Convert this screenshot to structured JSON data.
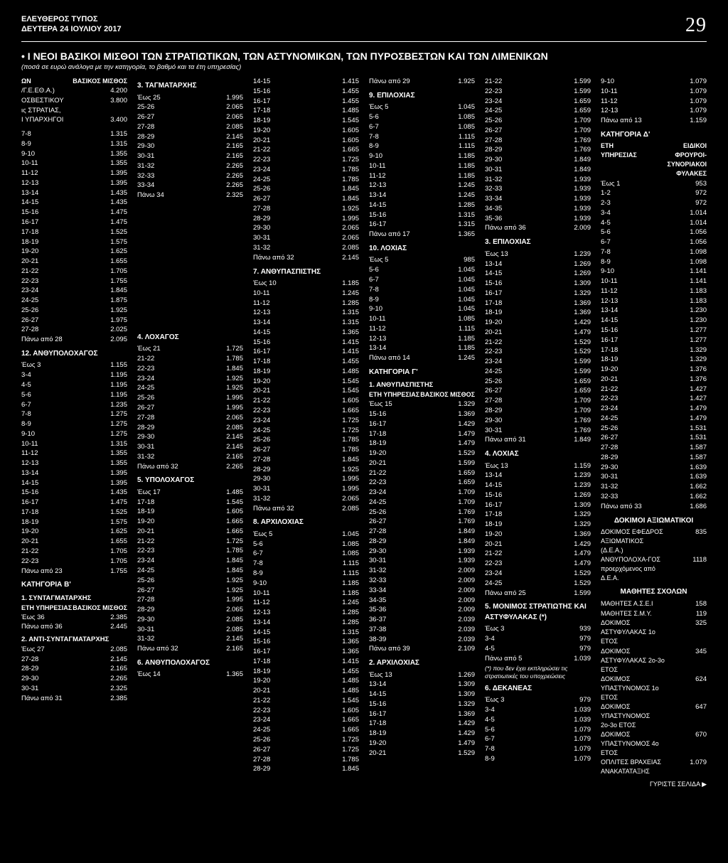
{
  "masthead": {
    "paper": "ΕΛΕΥΘΕΡΟΣ ΤΥΠΟΣ",
    "date": "ΔΕΥΤΕΡΑ 24 ΙΟΥΛΙΟΥ 2017",
    "page": "29"
  },
  "title": "• Ι ΝΕΟΙ ΒΑΣΙΚΟΙ ΜΙΣΘΟΙ ΤΩΝ ΣΤΡΑΤΙΩΤΙΚΩΝ, ΤΩΝ ΑΣΤΥΝΟΜΙΚΩΝ, ΤΩΝ ΠΥΡΟΣΒΕΣΤΩΝ ΚΑΙ ΤΩΝ ΛΙΜΕΝΙΚΩΝ",
  "subtitle": "(ποσά σε ευρώ ανάλογα με την κατηγορία, το βαθμό και τα έτη υπηρεσίας)",
  "col1": {
    "th": [
      "ΩΝ",
      "ΒΑΣΙΚΟΣ ΜΙΣΘΟΣ"
    ],
    "top": [
      [
        "/Γ.Ε.ΕΘ.Α.)",
        "4.200"
      ],
      [
        "ΟΣΒΕΣΤΙΚΟΥ",
        "3.800"
      ],
      [
        "ις ΣΤΡΑΤΙΑΣ,",
        ""
      ],
      [
        "Ι ΥΠΑΡΧΗΓΟΙ",
        "3.400"
      ]
    ],
    "rows1": [
      [
        "7-8",
        "1.315"
      ],
      [
        "8-9",
        "1.315"
      ],
      [
        "9-10",
        "1.355"
      ],
      [
        "10-11",
        "1.355"
      ],
      [
        "11-12",
        "1.395"
      ],
      [
        "12-13",
        "1.395"
      ],
      [
        "13-14",
        "1.435"
      ],
      [
        "14-15",
        "1.435"
      ],
      [
        "15-16",
        "1.475"
      ],
      [
        "16-17",
        "1.475"
      ],
      [
        "17-18",
        "1.525"
      ],
      [
        "18-19",
        "1.575"
      ],
      [
        "19-20",
        "1.625"
      ],
      [
        "20-21",
        "1.655"
      ],
      [
        "21-22",
        "1.705"
      ],
      [
        "22-23",
        "1.755"
      ],
      [
        "23-24",
        "1.845"
      ],
      [
        "24-25",
        "1.875"
      ],
      [
        "25-26",
        "1.925"
      ],
      [
        "26-27",
        "1.975"
      ],
      [
        "27-28",
        "2.025"
      ],
      [
        "Πάνω από 28",
        "2.095"
      ]
    ],
    "h12": "12. ΑΝΘΥΠΟΛΟΧΑΓΟΣ",
    "rows12": [
      [
        "Έως 3",
        "1.155"
      ],
      [
        "3-4",
        "1.195"
      ],
      [
        "4-5",
        "1.195"
      ],
      [
        "5-6",
        "1.195"
      ],
      [
        "6-7",
        "1.235"
      ],
      [
        "7-8",
        "1.275"
      ],
      [
        "8-9",
        "1.275"
      ],
      [
        "9-10",
        "1.275"
      ],
      [
        "10-11",
        "1.315"
      ],
      [
        "11-12",
        "1.355"
      ],
      [
        "12-13",
        "1.355"
      ],
      [
        "13-14",
        "1.395"
      ],
      [
        "14-15",
        "1.395"
      ],
      [
        "15-16",
        "1.435"
      ],
      [
        "16-17",
        "1.475"
      ],
      [
        "17-18",
        "1.525"
      ],
      [
        "18-19",
        "1.575"
      ],
      [
        "19-20",
        "1.625"
      ],
      [
        "20-21",
        "1.655"
      ],
      [
        "21-22",
        "1.705"
      ],
      [
        "22-23",
        "1.705"
      ],
      [
        "Πάνω από 23",
        "1.755"
      ]
    ],
    "katB": "ΚΑΤΗΓΟΡΙΑ Β'",
    "h1b": "1. ΣΥΝΤΑΓΜΑΤΑΡΧΗΣ",
    "thB": [
      "ΕΤΗ ΥΠΗΡΕΣΙΑΣ",
      "ΒΑΣΙΚΟΣ ΜΙΣΘΟΣ"
    ],
    "rowsB1": [
      [
        "Έως 36",
        "2.385"
      ],
      [
        "Πάνω από 36",
        "2.445"
      ]
    ],
    "h2b": "2. ΑΝΤΙ-ΣΥΝΤΑΓΜΑΤΑΡΧΗΣ",
    "rowsB2": [
      [
        "Έως 27",
        "2.085"
      ],
      [
        "27-28",
        "2.145"
      ],
      [
        "28-29",
        "2.165"
      ],
      [
        "29-30",
        "2.265"
      ],
      [
        "30-31",
        "2.325"
      ],
      [
        "Πάνω από 31",
        "2.385"
      ]
    ]
  },
  "col2": {
    "h3": "3. ΤΑΓΜΑΤΑΡΧΗΣ",
    "rows3": [
      [
        "Έως 25",
        "1.995"
      ],
      [
        "25-26",
        "2.065"
      ],
      [
        "26-27",
        "2.065"
      ],
      [
        "27-28",
        "2.085"
      ],
      [
        "28-29",
        "2.145"
      ],
      [
        "29-30",
        "2.165"
      ],
      [
        "30-31",
        "2.165"
      ],
      [
        "31-32",
        "2.265"
      ],
      [
        "32-33",
        "2.265"
      ],
      [
        "33-34",
        "2.265"
      ],
      [
        "Πάνω 34",
        "2.325"
      ]
    ],
    "h4": "4. ΛΟΧΑΓΟΣ",
    "rows4": [
      [
        "Έως 21",
        "1.725"
      ],
      [
        "21-22",
        "1.785"
      ],
      [
        "22-23",
        "1.845"
      ],
      [
        "23-24",
        "1.925"
      ],
      [
        "24-25",
        "1.925"
      ],
      [
        "25-26",
        "1.995"
      ],
      [
        "26-27",
        "1.995"
      ],
      [
        "27-28",
        "2.065"
      ],
      [
        "28-29",
        "2.085"
      ],
      [
        "29-30",
        "2.145"
      ],
      [
        "30-31",
        "2.145"
      ],
      [
        "31-32",
        "2.165"
      ],
      [
        "Πάνω από 32",
        "2.265"
      ]
    ],
    "h5": "5. ΥΠΟΛΟΧΑΓΟΣ",
    "rows5": [
      [
        "Έως 17",
        "1.485"
      ],
      [
        "17-18",
        "1.545"
      ],
      [
        "18-19",
        "1.605"
      ],
      [
        "19-20",
        "1.665"
      ],
      [
        "20-21",
        "1.665"
      ],
      [
        "21-22",
        "1.725"
      ],
      [
        "22-23",
        "1.785"
      ],
      [
        "23-24",
        "1.845"
      ],
      [
        "24-25",
        "1.845"
      ],
      [
        "25-26",
        "1.925"
      ],
      [
        "26-27",
        "1.925"
      ],
      [
        "27-28",
        "1.995"
      ],
      [
        "28-29",
        "2.065"
      ],
      [
        "29-30",
        "2.085"
      ],
      [
        "30-31",
        "2.085"
      ],
      [
        "31-32",
        "2.145"
      ],
      [
        "Πάνω από 32",
        "2.165"
      ]
    ],
    "h6": "6. ΑΝΘΥΠΟΛΟΧΑΓΟΣ",
    "rows6": [
      [
        "Έως 14",
        "1.365"
      ]
    ]
  },
  "col3": {
    "rows6b": [
      [
        "14-15",
        "1.415"
      ],
      [
        "15-16",
        "1.455"
      ],
      [
        "16-17",
        "1.455"
      ],
      [
        "17-18",
        "1.485"
      ],
      [
        "18-19",
        "1.545"
      ],
      [
        "19-20",
        "1.605"
      ],
      [
        "20-21",
        "1.605"
      ],
      [
        "21-22",
        "1.665"
      ],
      [
        "22-23",
        "1.725"
      ],
      [
        "23-24",
        "1.785"
      ],
      [
        "24-25",
        "1.785"
      ],
      [
        "25-26",
        "1.845"
      ],
      [
        "26-27",
        "1.845"
      ],
      [
        "27-28",
        "1.925"
      ],
      [
        "28-29",
        "1.995"
      ],
      [
        "29-30",
        "2.065"
      ],
      [
        "30-31",
        "2.065"
      ],
      [
        "31-32",
        "2.085"
      ],
      [
        "Πάνω από 32",
        "2.145"
      ]
    ],
    "h7": "7. ΑΝΘΥΠΑΣΠΙΣΤΗΣ",
    "rows7": [
      [
        "Έως 10",
        "1.185"
      ],
      [
        "10-11",
        "1.245"
      ],
      [
        "11-12",
        "1.285"
      ],
      [
        "12-13",
        "1.315"
      ],
      [
        "13-14",
        "1.315"
      ],
      [
        "14-15",
        "1.365"
      ],
      [
        "15-16",
        "1.415"
      ],
      [
        "16-17",
        "1.415"
      ],
      [
        "17-18",
        "1.455"
      ],
      [
        "18-19",
        "1.485"
      ],
      [
        "19-20",
        "1.545"
      ],
      [
        "20-21",
        "1.545"
      ],
      [
        "21-22",
        "1.605"
      ],
      [
        "22-23",
        "1.665"
      ],
      [
        "23-24",
        "1.725"
      ],
      [
        "24-25",
        "1.725"
      ],
      [
        "25-26",
        "1.785"
      ],
      [
        "26-27",
        "1.785"
      ],
      [
        "27-28",
        "1.845"
      ],
      [
        "28-29",
        "1.925"
      ],
      [
        "29-30",
        "1.995"
      ],
      [
        "30-31",
        "1.995"
      ],
      [
        "31-32",
        "2.065"
      ],
      [
        "Πάνω από 32",
        "2.085"
      ]
    ],
    "h8": "8. ΑΡΧΙΛΟΧΙΑΣ",
    "rows8": [
      [
        "Έως 5",
        "1.045"
      ],
      [
        "5-6",
        "1.085"
      ],
      [
        "6-7",
        "1.085"
      ],
      [
        "7-8",
        "1.115"
      ],
      [
        "8-9",
        "1.115"
      ],
      [
        "9-10",
        "1.185"
      ],
      [
        "10-11",
        "1.185"
      ],
      [
        "11-12",
        "1.245"
      ],
      [
        "12-13",
        "1.285"
      ],
      [
        "13-14",
        "1.285"
      ],
      [
        "14-15",
        "1.315"
      ],
      [
        "15-16",
        "1.365"
      ],
      [
        "16-17",
        "1.365"
      ],
      [
        "17-18",
        "1.415"
      ],
      [
        "18-19",
        "1.455"
      ],
      [
        "19-20",
        "1.485"
      ],
      [
        "20-21",
        "1.485"
      ],
      [
        "21-22",
        "1.545"
      ],
      [
        "22-23",
        "1.605"
      ],
      [
        "23-24",
        "1.665"
      ],
      [
        "24-25",
        "1.665"
      ],
      [
        "25-26",
        "1.725"
      ],
      [
        "26-27",
        "1.725"
      ],
      [
        "27-28",
        "1.785"
      ],
      [
        "28-29",
        "1.845"
      ]
    ]
  },
  "col4": {
    "rows8b": [
      [
        "Πάνω από 29",
        "1.925"
      ]
    ],
    "h9": "9. ΕΠΙΛΟΧΙΑΣ",
    "rows9": [
      [
        "Έως 5",
        "1.045"
      ],
      [
        "5-6",
        "1.085"
      ],
      [
        "6-7",
        "1.085"
      ],
      [
        "7-8",
        "1.115"
      ],
      [
        "8-9",
        "1.115"
      ],
      [
        "9-10",
        "1.185"
      ],
      [
        "10-11",
        "1.185"
      ],
      [
        "11-12",
        "1.185"
      ],
      [
        "12-13",
        "1.245"
      ],
      [
        "13-14",
        "1.245"
      ],
      [
        "14-15",
        "1.285"
      ],
      [
        "15-16",
        "1.315"
      ],
      [
        "16-17",
        "1.315"
      ],
      [
        "Πάνω από 17",
        "1.365"
      ]
    ],
    "h10": "10. ΛΟΧΙΑΣ",
    "rows10": [
      [
        "Έως 5",
        "985"
      ],
      [
        "5-6",
        "1.045"
      ],
      [
        "6-7",
        "1.045"
      ],
      [
        "7-8",
        "1.045"
      ],
      [
        "8-9",
        "1.045"
      ],
      [
        "9-10",
        "1.045"
      ],
      [
        "10-11",
        "1.085"
      ],
      [
        "11-12",
        "1.115"
      ],
      [
        "12-13",
        "1.185"
      ],
      [
        "13-14",
        "1.185"
      ],
      [
        "Πάνω από 14",
        "1.245"
      ]
    ],
    "katC": "ΚΑΤΗΓΟΡΙΑ Γ'",
    "h1c": "1. ΑΝΘΥΠΑΣΠΙΣΤΗΣ",
    "thC": [
      "ΕΤΗ ΥΠΗΡΕΣΙΑΣ",
      "ΒΑΣΙΚΟΣ ΜΙΣΘΟΣ"
    ],
    "rowsC1": [
      [
        "Έως 15",
        "1.329"
      ],
      [
        "15-16",
        "1.369"
      ],
      [
        "16-17",
        "1.429"
      ],
      [
        "17-18",
        "1.479"
      ],
      [
        "18-19",
        "1.479"
      ],
      [
        "19-20",
        "1.529"
      ],
      [
        "20-21",
        "1.599"
      ],
      [
        "21-22",
        "1.659"
      ],
      [
        "22-23",
        "1.659"
      ],
      [
        "23-24",
        "1.709"
      ],
      [
        "24-25",
        "1.709"
      ],
      [
        "25-26",
        "1.769"
      ],
      [
        "26-27",
        "1.769"
      ],
      [
        "27-28",
        "1.849"
      ],
      [
        "28-29",
        "1.849"
      ],
      [
        "29-30",
        "1.939"
      ],
      [
        "30-31",
        "1.939"
      ],
      [
        "31-32",
        "2.009"
      ],
      [
        "32-33",
        "2.009"
      ],
      [
        "33-34",
        "2.009"
      ],
      [
        "34-35",
        "2.009"
      ],
      [
        "35-36",
        "2.009"
      ],
      [
        "36-37",
        "2.039"
      ],
      [
        "37-38",
        "2.039"
      ],
      [
        "38-39",
        "2.039"
      ],
      [
        "Πάνω από 39",
        "2.109"
      ]
    ],
    "h2c": "2. ΑΡΧΙΛΟΧΙΑΣ",
    "rowsC2": [
      [
        "Έως 13",
        "1.269"
      ],
      [
        "13-14",
        "1.309"
      ],
      [
        "14-15",
        "1.309"
      ],
      [
        "15-16",
        "1.329"
      ],
      [
        "16-17",
        "1.369"
      ],
      [
        "17-18",
        "1.429"
      ],
      [
        "18-19",
        "1.429"
      ],
      [
        "19-20",
        "1.479"
      ],
      [
        "20-21",
        "1.529"
      ]
    ]
  },
  "col5": {
    "rowsC2b": [
      [
        "21-22",
        "1.599"
      ],
      [
        "22-23",
        "1.599"
      ],
      [
        "23-24",
        "1.659"
      ],
      [
        "24-25",
        "1.659"
      ],
      [
        "25-26",
        "1.709"
      ],
      [
        "26-27",
        "1.709"
      ],
      [
        "27-28",
        "1.769"
      ],
      [
        "28-29",
        "1.769"
      ],
      [
        "29-30",
        "1.849"
      ],
      [
        "30-31",
        "1.849"
      ],
      [
        "31-32",
        "1.939"
      ],
      [
        "32-33",
        "1.939"
      ],
      [
        "33-34",
        "1.939"
      ],
      [
        "34-35",
        "1.939"
      ],
      [
        "35-36",
        "1.939"
      ],
      [
        "Πάνω από 36",
        "2.009"
      ]
    ],
    "h3c": "3. ΕΠΙΛΟΧΙΑΣ",
    "rowsC3": [
      [
        "Έως 13",
        "1.239"
      ],
      [
        "13-14",
        "1.269"
      ],
      [
        "14-15",
        "1.269"
      ],
      [
        "15-16",
        "1.309"
      ],
      [
        "16-17",
        "1.329"
      ],
      [
        "17-18",
        "1.369"
      ],
      [
        "18-19",
        "1.369"
      ],
      [
        "19-20",
        "1.429"
      ],
      [
        "20-21",
        "1.479"
      ],
      [
        "21-22",
        "1.529"
      ],
      [
        "22-23",
        "1.529"
      ],
      [
        "23-24",
        "1.599"
      ],
      [
        "24-25",
        "1.599"
      ],
      [
        "25-26",
        "1.659"
      ],
      [
        "26-27",
        "1.659"
      ],
      [
        "27-28",
        "1.709"
      ],
      [
        "28-29",
        "1.709"
      ],
      [
        "29-30",
        "1.769"
      ],
      [
        "30-31",
        "1.769"
      ],
      [
        "Πάνω από 31",
        "1.849"
      ]
    ],
    "h4c": "4. ΛΟΧΙΑΣ",
    "rowsC4": [
      [
        "Έως 13",
        "1.159"
      ],
      [
        "13-14",
        "1.239"
      ],
      [
        "14-15",
        "1.239"
      ],
      [
        "15-16",
        "1.269"
      ],
      [
        "16-17",
        "1.309"
      ],
      [
        "17-18",
        "1.329"
      ],
      [
        "18-19",
        "1.329"
      ],
      [
        "19-20",
        "1.369"
      ],
      [
        "20-21",
        "1.429"
      ],
      [
        "21-22",
        "1.479"
      ],
      [
        "22-23",
        "1.479"
      ],
      [
        "23-24",
        "1.529"
      ],
      [
        "24-25",
        "1.529"
      ],
      [
        "Πάνω από 25",
        "1.599"
      ]
    ],
    "h5c": "5. ΜΟΝΙΜΟΣ ΣΤΡΑΤΙΩΤΗΣ ΚΑΙ ΑΣΤΥΦΥΛΑΚΑΣ (*)",
    "rowsC5": [
      [
        "Έως 3",
        "939"
      ],
      [
        "3-4",
        "979"
      ],
      [
        "4-5",
        "979"
      ],
      [
        "Πάνω από 5",
        "1.039"
      ]
    ],
    "note5": "(*) που δεν έχει εκπληρώσει τις στρατιωτικές του υποχρεώσεις",
    "h6c": "6. ΔΕΚΑΝΕΑΣ",
    "rowsC6": [
      [
        "Έως 3",
        "979"
      ],
      [
        "3-4",
        "1.039"
      ],
      [
        "4-5",
        "1.039"
      ],
      [
        "5-6",
        "1.079"
      ],
      [
        "6-7",
        "1.079"
      ],
      [
        "7-8",
        "1.079"
      ],
      [
        "8-9",
        "1.079"
      ]
    ]
  },
  "col6": {
    "rowsC6b": [
      [
        "9-10",
        "1.079"
      ],
      [
        "10-11",
        "1.079"
      ],
      [
        "11-12",
        "1.079"
      ],
      [
        "12-13",
        "1.079"
      ],
      [
        "Πάνω από 13",
        "1.159"
      ]
    ],
    "katD": "ΚΑΤΗΓΟΡΙΑ Δ'",
    "thD": [
      "ΕΤΗ ΥΠΗΡΕΣΙΑΣ",
      "ΕΙΔΙΚΟΙ ΦΡΟΥΡΟΙ- ΣΥΝΟΡΙΑΚΟΙ ΦΥΛΑΚΕΣ"
    ],
    "rowsD": [
      [
        "Έως 1",
        "953"
      ],
      [
        "1-2",
        "972"
      ],
      [
        "2-3",
        "972"
      ],
      [
        "3-4",
        "1.014"
      ],
      [
        "4-5",
        "1.014"
      ],
      [
        "5-6",
        "1.056"
      ],
      [
        "6-7",
        "1.056"
      ],
      [
        "7-8",
        "1.098"
      ],
      [
        "8-9",
        "1.098"
      ],
      [
        "9-10",
        "1.141"
      ],
      [
        "10-11",
        "1.141"
      ],
      [
        "11-12",
        "1.183"
      ],
      [
        "12-13",
        "1.183"
      ],
      [
        "13-14",
        "1.230"
      ],
      [
        "14-15",
        "1.230"
      ],
      [
        "15-16",
        "1.277"
      ],
      [
        "16-17",
        "1.277"
      ],
      [
        "17-18",
        "1.329"
      ],
      [
        "18-19",
        "1.329"
      ],
      [
        "19-20",
        "1.376"
      ],
      [
        "20-21",
        "1.376"
      ],
      [
        "21-22",
        "1.427"
      ],
      [
        "22-23",
        "1.427"
      ],
      [
        "23-24",
        "1.479"
      ],
      [
        "24-25",
        "1.479"
      ],
      [
        "25-26",
        "1.531"
      ],
      [
        "26-27",
        "1.531"
      ],
      [
        "27-28",
        "1.587"
      ],
      [
        "28-29",
        "1.587"
      ],
      [
        "29-30",
        "1.639"
      ],
      [
        "30-31",
        "1.639"
      ],
      [
        "31-32",
        "1.662"
      ],
      [
        "32-33",
        "1.662"
      ],
      [
        "Πάνω από 33",
        "1.686"
      ]
    ],
    "hDok": "ΔΟΚΙΜΟΙ ΑΞΙΩΜΑΤΙΚΟΙ",
    "rowsDok": [
      [
        "ΔΟΚΙΜΟΣ ΕΦΕΔΡΟΣ ΑΞΙΩΜΑΤΙΚΟΣ (Δ.Ε.Α.)",
        "835"
      ],
      [
        "ΑΝΘΥΠΟΛΟΧΑ-ΓΟΣ προερχόμενος από Δ.Ε.Α.",
        "1118"
      ]
    ],
    "hMath": "ΜΑΘΗΤΕΣ ΣΧΟΛΩΝ",
    "rowsMath": [
      [
        "ΜΑΘΗΤΕΣ Α.Σ.Ε.Ι",
        "158"
      ],
      [
        "ΜΑΘΗΤΕΣ Σ.Μ.Υ.",
        "119"
      ],
      [
        "ΔΟΚΙΜΟΣ ΑΣΤΥΦΥΛΑΚΑΣ 1ο ΕΤΟΣ",
        "325"
      ],
      [
        "ΔΟΚΙΜΟΣ ΑΣΤΥΦΥΛΑΚΑΣ 2ο-3ο ΕΤΟΣ",
        "345"
      ],
      [
        "ΔΟΚΙΜΟΣ ΥΠΑΣΤΥΝΟΜΟΣ 1ο ΕΤΟΣ",
        "624"
      ],
      [
        "ΔΟΚΙΜΟΣ ΥΠΑΣΤΥΝΟΜΟΣ 2ο-3ο ΕΤΟΣ",
        "647"
      ],
      [
        "ΔΟΚΙΜΟΣ ΥΠΑΣΤΥΝΟΜΟΣ 4ο ΕΤΟΣ",
        "670"
      ],
      [
        "ΟΠΛΙΤΕΣ ΒΡΑΧΕΙΑΣ ΑΝΑΚΑΤΑΤΑΞΗΣ",
        "1.079"
      ]
    ]
  },
  "continue": "ΓΥΡΙΣΤΕ ΣΕΛΙΔΑ ▶"
}
